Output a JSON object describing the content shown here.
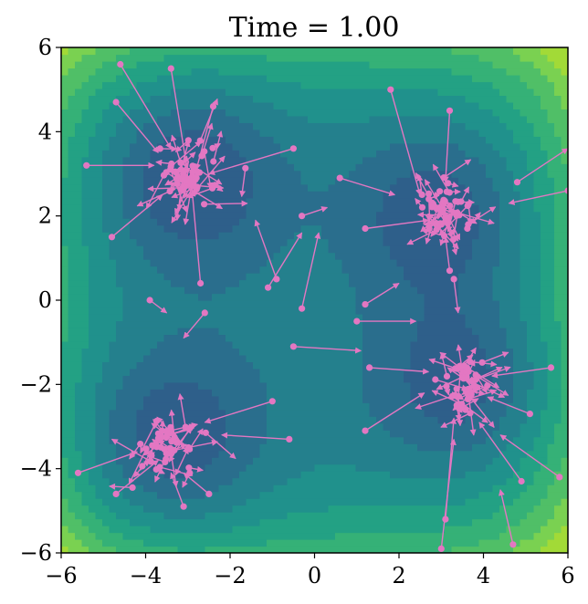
{
  "chart_data": {
    "type": "scatter",
    "title": "Time = 1.00",
    "xlabel": "",
    "ylabel": "",
    "xlim": [
      -6,
      6
    ],
    "ylim": [
      -6,
      6
    ],
    "x_ticks": [
      -6,
      -4,
      -2,
      0,
      2,
      4,
      6
    ],
    "y_ticks": [
      -6,
      -4,
      -2,
      0,
      2,
      4,
      6
    ],
    "x_tick_labels": [
      "−6",
      "−4",
      "−2",
      "0",
      "2",
      "4",
      "6"
    ],
    "y_tick_labels": [
      "−6",
      "−4",
      "−2",
      "0",
      "2",
      "4",
      "6"
    ],
    "grid": false,
    "legend": "none",
    "background": "filled contour map of a four-well potential (minima near (-3,3), (3,2), (3.5,-2), (-3.5,-3.5))",
    "colors": {
      "marker": "#e377c2",
      "contour_levels": [
        "#2e5f8a",
        "#2a6e8d",
        "#24808d",
        "#20918c",
        "#23a184",
        "#35b177",
        "#50bf67",
        "#7ad151",
        "#a2da37"
      ]
    },
    "clusters": [
      {
        "center": [
          -3.0,
          3.0
        ],
        "spread": 0.35,
        "count": 45
      },
      {
        "center": [
          3.0,
          2.1
        ],
        "spread": 0.35,
        "count": 45
      },
      {
        "center": [
          3.6,
          -2.0
        ],
        "spread": 0.3,
        "count": 40
      },
      {
        "center": [
          -3.5,
          -3.4
        ],
        "spread": 0.3,
        "count": 40
      }
    ],
    "outlier_vectors": [
      {
        "x": -4.6,
        "y": 5.6,
        "dx": 1.2,
        "dy": -2.0
      },
      {
        "x": -3.4,
        "y": 5.5,
        "dx": 0.4,
        "dy": -2.5
      },
      {
        "x": -2.4,
        "y": 4.6,
        "dx": -0.4,
        "dy": -1.5
      },
      {
        "x": -4.7,
        "y": 4.7,
        "dx": 1.0,
        "dy": -1.2
      },
      {
        "x": -5.4,
        "y": 3.2,
        "dx": 1.6,
        "dy": 0.0
      },
      {
        "x": -4.8,
        "y": 1.5,
        "dx": 1.2,
        "dy": 1.0
      },
      {
        "x": -2.7,
        "y": 0.4,
        "dx": -0.2,
        "dy": 2.2
      },
      {
        "x": -0.5,
        "y": 3.6,
        "dx": -2.0,
        "dy": -0.6
      },
      {
        "x": -0.9,
        "y": 0.5,
        "dx": -0.5,
        "dy": 1.4
      },
      {
        "x": -0.3,
        "y": -0.2,
        "dx": 0.4,
        "dy": 1.8
      },
      {
        "x": -1.1,
        "y": 0.3,
        "dx": 0.8,
        "dy": 1.3
      },
      {
        "x": -0.3,
        "y": 2.0,
        "dx": 0.6,
        "dy": 0.2
      },
      {
        "x": -3.9,
        "y": 0.0,
        "dx": 0.4,
        "dy": -0.3
      },
      {
        "x": -2.6,
        "y": -0.3,
        "dx": -0.5,
        "dy": -0.6
      },
      {
        "x": -5.6,
        "y": -4.1,
        "dx": 1.4,
        "dy": 0.5
      },
      {
        "x": -4.7,
        "y": -4.6,
        "dx": 1.0,
        "dy": 0.8
      },
      {
        "x": -1.0,
        "y": -2.4,
        "dx": -1.6,
        "dy": -0.5
      },
      {
        "x": -0.6,
        "y": -3.3,
        "dx": -1.6,
        "dy": 0.1
      },
      {
        "x": -2.5,
        "y": -4.6,
        "dx": -0.6,
        "dy": 0.5
      },
      {
        "x": -3.1,
        "y": -4.9,
        "dx": -0.3,
        "dy": 0.8
      },
      {
        "x": 1.8,
        "y": 5.0,
        "dx": 0.7,
        "dy": -2.5
      },
      {
        "x": 3.2,
        "y": 4.5,
        "dx": -0.1,
        "dy": -1.7
      },
      {
        "x": 4.8,
        "y": 2.8,
        "dx": 1.2,
        "dy": 0.8
      },
      {
        "x": 6.0,
        "y": 2.6,
        "dx": -1.4,
        "dy": -0.3
      },
      {
        "x": 0.6,
        "y": 2.9,
        "dx": 1.3,
        "dy": -0.4
      },
      {
        "x": 1.2,
        "y": 1.7,
        "dx": 1.5,
        "dy": 0.2
      },
      {
        "x": 1.2,
        "y": -0.1,
        "dx": 0.8,
        "dy": 0.5
      },
      {
        "x": 1.0,
        "y": -0.5,
        "dx": 1.4,
        "dy": 0.0
      },
      {
        "x": -0.5,
        "y": -1.1,
        "dx": 1.6,
        "dy": -0.1
      },
      {
        "x": 1.3,
        "y": -1.6,
        "dx": 1.4,
        "dy": -0.1
      },
      {
        "x": 1.2,
        "y": -3.1,
        "dx": 1.4,
        "dy": 0.9
      },
      {
        "x": 3.1,
        "y": -5.2,
        "dx": 0.2,
        "dy": 2.4
      },
      {
        "x": 3.0,
        "y": -5.9,
        "dx": 0.3,
        "dy": 2.6
      },
      {
        "x": 4.9,
        "y": -4.3,
        "dx": -1.0,
        "dy": 1.4
      },
      {
        "x": 5.8,
        "y": -4.2,
        "dx": -1.4,
        "dy": 1.0
      },
      {
        "x": 5.6,
        "y": -1.6,
        "dx": -1.4,
        "dy": -0.2
      },
      {
        "x": 5.1,
        "y": -2.7,
        "dx": -1.0,
        "dy": 0.4
      },
      {
        "x": 4.7,
        "y": -5.8,
        "dx": -0.3,
        "dy": 1.3
      },
      {
        "x": 3.3,
        "y": 0.5,
        "dx": 0.1,
        "dy": -0.8
      },
      {
        "x": 3.2,
        "y": 0.7,
        "dx": -0.1,
        "dy": 0.8
      }
    ]
  }
}
